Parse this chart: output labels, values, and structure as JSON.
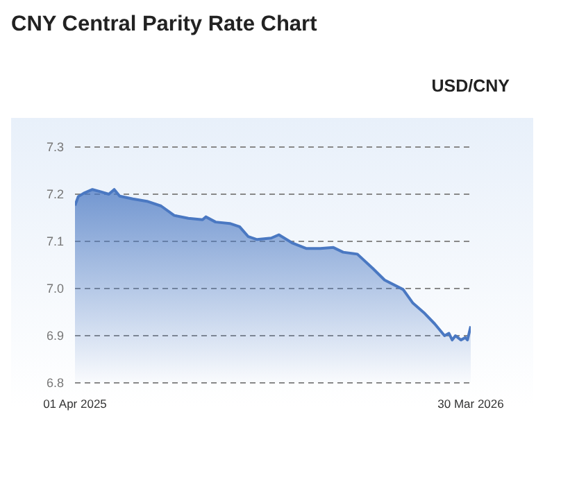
{
  "chart_data": {
    "type": "area",
    "title": "CNY Central Parity Rate Chart",
    "subtitle": "USD/CNY",
    "x": [
      "2025-04-01",
      "2025-04-04",
      "2025-04-09",
      "2025-04-17",
      "2025-04-25",
      "2025-05-02",
      "2025-05-07",
      "2025-05-12",
      "2025-05-24",
      "2025-06-06",
      "2025-06-19",
      "2025-07-01",
      "2025-07-14",
      "2025-07-27",
      "2025-07-30",
      "2025-08-08",
      "2025-08-21",
      "2025-08-30",
      "2025-09-07",
      "2025-09-15",
      "2025-09-28",
      "2025-10-05",
      "2025-10-17",
      "2025-10-30",
      "2025-11-12",
      "2025-11-24",
      "2025-12-03",
      "2025-12-16",
      "2025-12-30",
      "2026-01-10",
      "2026-01-27",
      "2026-02-05",
      "2026-02-15",
      "2026-02-25",
      "2026-03-06",
      "2026-03-10",
      "2026-03-13",
      "2026-03-16",
      "2026-03-21",
      "2026-03-25",
      "2026-03-27",
      "2026-03-30"
    ],
    "series": [
      {
        "color": "#4a78c2",
        "values": [
          7.176,
          7.195,
          7.202,
          7.21,
          7.205,
          7.2,
          7.21,
          7.196,
          7.19,
          7.185,
          7.175,
          7.155,
          7.149,
          7.146,
          7.152,
          7.141,
          7.138,
          7.131,
          7.11,
          7.104,
          7.107,
          7.114,
          7.097,
          7.085,
          7.085,
          7.087,
          7.077,
          7.073,
          7.043,
          7.018,
          6.998,
          6.969,
          6.949,
          6.925,
          6.9,
          6.905,
          6.891,
          6.9,
          6.891,
          6.896,
          6.891,
          6.92
        ]
      }
    ],
    "xlim": [
      "2025-04-01",
      "2026-03-30"
    ],
    "xticks": [
      {
        "value": "2025-04-01",
        "label": "01 Apr 2025"
      },
      {
        "value": "2026-03-30",
        "label": "30 Mar 2026"
      }
    ],
    "ylim": [
      6.8,
      7.3
    ],
    "yticks": [
      {
        "value": 6.8,
        "label": "6.8"
      },
      {
        "value": 6.9,
        "label": "6.9"
      },
      {
        "value": 7.0,
        "label": "7.0"
      },
      {
        "value": 7.1,
        "label": "7.1"
      },
      {
        "value": 7.2,
        "label": "7.2"
      },
      {
        "value": 7.3,
        "label": "7.3"
      }
    ],
    "grid": "y"
  }
}
